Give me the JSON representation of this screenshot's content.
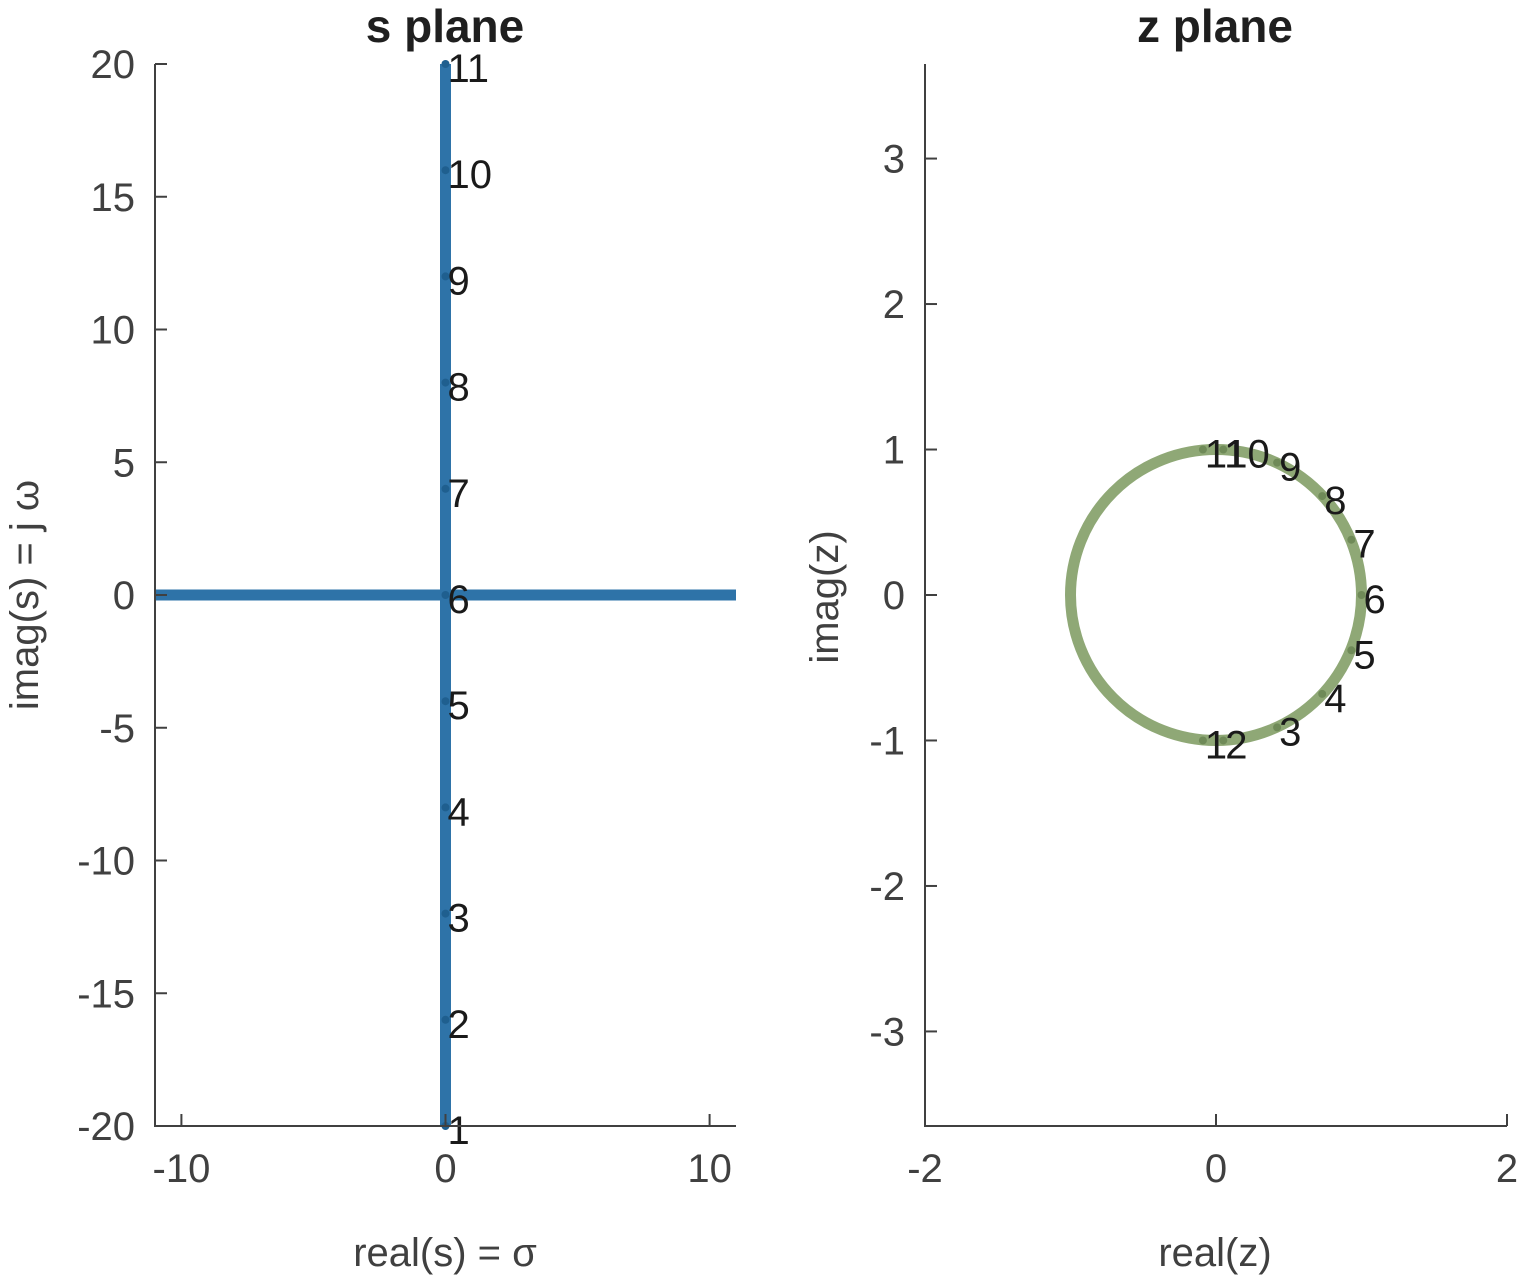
{
  "chart_data": [
    {
      "type": "line",
      "title": "s plane",
      "xlabel": "real(s) = σ",
      "ylabel": "imag(s) = j ω",
      "xlim": [
        -11,
        11
      ],
      "ylim": [
        -20,
        20
      ],
      "xticks": [
        -10,
        0,
        10
      ],
      "xtick_labels": [
        "-10",
        "0",
        "10"
      ],
      "yticks": [
        -20,
        -15,
        -10,
        -5,
        0,
        5,
        10,
        15,
        20
      ],
      "ytick_labels": [
        "-20",
        "-15",
        "-10",
        "-5",
        "0",
        "5",
        "10",
        "15",
        "20"
      ],
      "color": "#2e73a8",
      "series": [
        {
          "x": [
            -11,
            11
          ],
          "y": [
            0,
            0
          ]
        },
        {
          "x": [
            0,
            0
          ],
          "y": [
            -20,
            20
          ]
        }
      ],
      "points": [
        {
          "label": "1",
          "x": 0,
          "y": -20
        },
        {
          "label": "2",
          "x": 0,
          "y": -16
        },
        {
          "label": "3",
          "x": 0,
          "y": -12
        },
        {
          "label": "4",
          "x": 0,
          "y": -8
        },
        {
          "label": "5",
          "x": 0,
          "y": -4
        },
        {
          "label": "6",
          "x": 0,
          "y": 0
        },
        {
          "label": "7",
          "x": 0,
          "y": 4
        },
        {
          "label": "8",
          "x": 0,
          "y": 8
        },
        {
          "label": "9",
          "x": 0,
          "y": 12
        },
        {
          "label": "10",
          "x": 0,
          "y": 16
        },
        {
          "label": "11",
          "x": 0,
          "y": 20
        }
      ]
    },
    {
      "type": "line",
      "title": "z plane",
      "xlabel": "real(z)",
      "ylabel": "imag(z)",
      "xlim": [
        -2,
        2
      ],
      "ylim": [
        -3.65,
        3.65
      ],
      "xticks": [
        -2,
        0,
        2
      ],
      "xtick_labels": [
        "-2",
        "0",
        "2"
      ],
      "yticks": [
        -3,
        -2,
        -1,
        0,
        1,
        2,
        3
      ],
      "ytick_labels": [
        "-3",
        "-2",
        "-1",
        "0",
        "1",
        "2",
        "3"
      ],
      "color": "#8fa876",
      "series": [
        {
          "shape": "unit circle",
          "center": [
            0,
            0
          ],
          "radius": 1
        }
      ],
      "points": [
        {
          "label": "1",
          "x": -0.09,
          "y": -1.0
        },
        {
          "label": "2",
          "x": 0.05,
          "y": -1.0
        },
        {
          "label": "3",
          "x": 0.42,
          "y": -0.91
        },
        {
          "label": "4",
          "x": 0.73,
          "y": -0.68
        },
        {
          "label": "5",
          "x": 0.93,
          "y": -0.38
        },
        {
          "label": "6",
          "x": 1.0,
          "y": 0.0
        },
        {
          "label": "7",
          "x": 0.93,
          "y": 0.38
        },
        {
          "label": "8",
          "x": 0.73,
          "y": 0.68
        },
        {
          "label": "9",
          "x": 0.42,
          "y": 0.91
        },
        {
          "label": "10",
          "x": 0.05,
          "y": 1.0
        },
        {
          "label": "11",
          "x": -0.09,
          "y": 1.0
        }
      ]
    }
  ]
}
